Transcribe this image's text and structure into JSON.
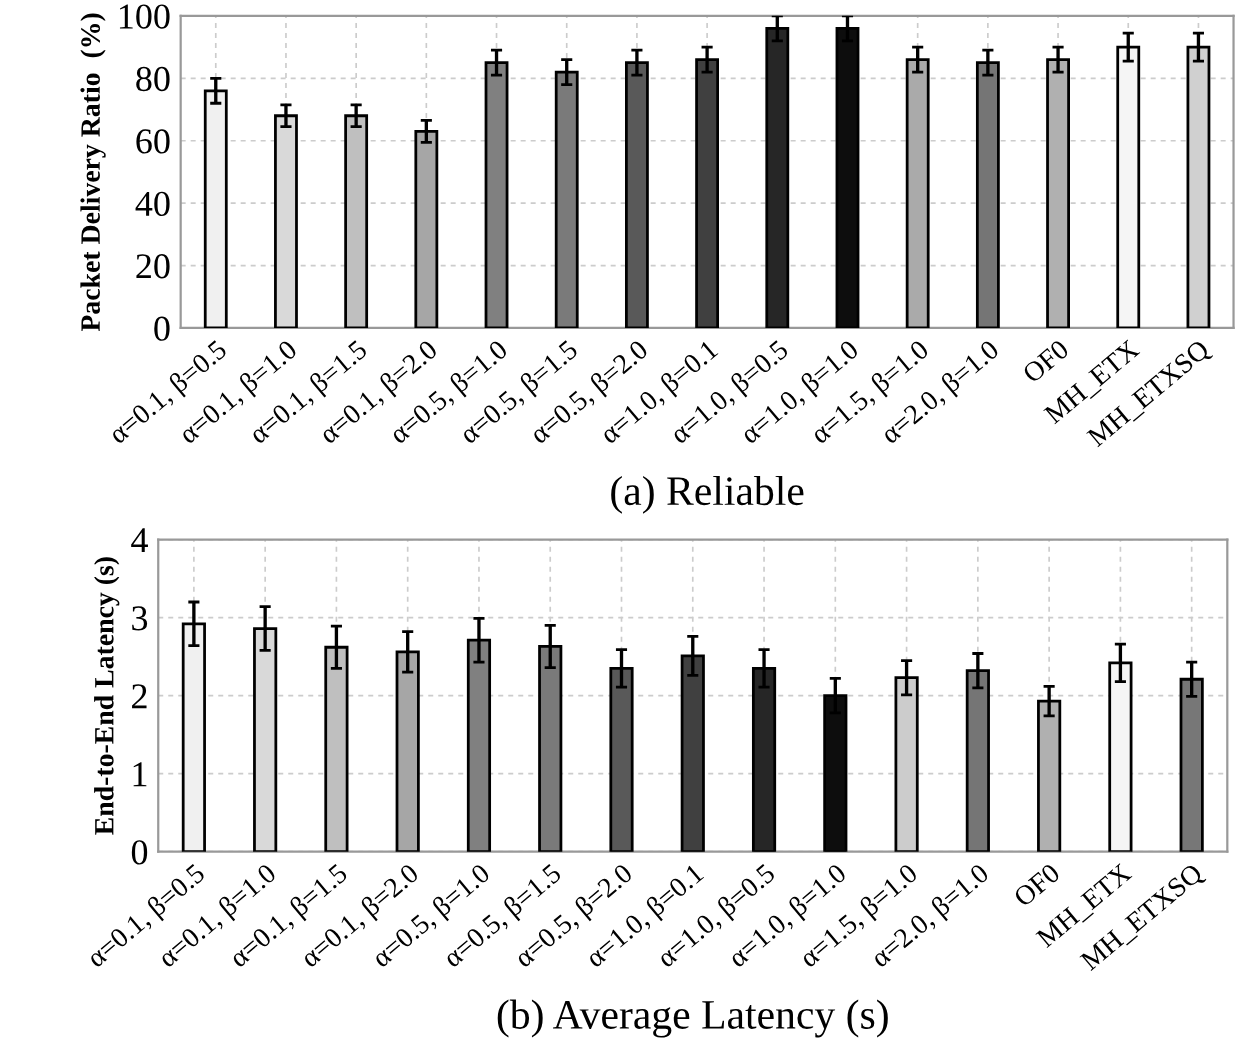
{
  "chart_data": [
    {
      "type": "bar",
      "title": "(a) Reliable",
      "ylabel": "Packet Delivery Ratio  (%)",
      "categories": [
        "α=0.1, β=0.5",
        "α=0.1, β=1.0",
        "α=0.1, β=1.5",
        "α=0.1, β=2.0",
        "α=0.5, β=1.0",
        "α=0.5, β=1.5",
        "α=0.5, β=2.0",
        "α=1.0, β=0.1",
        "α=1.0, β=0.5",
        "α=1.0, β=1.0",
        "α=1.5, β=1.0",
        "α=2.0, β=1.0",
        "OF0",
        "MH_ETX",
        "MH_ETXSQ"
      ],
      "values": [
        76,
        68,
        68,
        63,
        85,
        82,
        85,
        86,
        96,
        96,
        86,
        85,
        86,
        90,
        90
      ],
      "errors": [
        4,
        3.5,
        3.5,
        3.5,
        4,
        4,
        4,
        4,
        4,
        4,
        4,
        4,
        4,
        4.5,
        4.5
      ],
      "colors": [
        "#f0f0f0",
        "#d9d9d9",
        "#bfbfbf",
        "#a6a6a6",
        "#808080",
        "#7a7a7a",
        "#595959",
        "#404040",
        "#262626",
        "#0d0d0d",
        "#aaaaaa",
        "#757575",
        "#b0b0b0",
        "#f5f5f5",
        "#d0d0d0"
      ],
      "ylim": [
        0,
        100
      ],
      "yticks": [
        0,
        20,
        40,
        60,
        80,
        100
      ],
      "grid": true
    },
    {
      "type": "bar",
      "title": "(b) Average Latency (s)",
      "ylabel": "End-to-End Latency (s)",
      "categories": [
        "α=0.1, β=0.5",
        "α=0.1, β=1.0",
        "α=0.1, β=1.5",
        "α=0.1, β=2.0",
        "α=0.5, β=1.0",
        "α=0.5, β=1.5",
        "α=0.5, β=2.0",
        "α=1.0, β=0.1",
        "α=1.0, β=0.5",
        "α=1.0, β=1.0",
        "α=1.5, β=1.0",
        "α=2.0, β=1.0",
        "OF0",
        "MH_ETX",
        "MH_ETXSQ"
      ],
      "values": [
        2.92,
        2.86,
        2.62,
        2.56,
        2.71,
        2.63,
        2.35,
        2.51,
        2.35,
        2.0,
        2.23,
        2.32,
        1.93,
        2.42,
        2.21
      ],
      "errors": [
        0.28,
        0.28,
        0.27,
        0.26,
        0.28,
        0.27,
        0.24,
        0.25,
        0.24,
        0.22,
        0.22,
        0.22,
        0.19,
        0.24,
        0.22
      ],
      "colors": [
        "#f0f0f0",
        "#d9d9d9",
        "#bfbfbf",
        "#a6a6a6",
        "#808080",
        "#7a7a7a",
        "#595959",
        "#404040",
        "#262626",
        "#0d0d0d",
        "#cccccc",
        "#757575",
        "#b0b0b0",
        "#f5f5f5",
        "#777777"
      ],
      "ylim": [
        0,
        4
      ],
      "yticks": [
        0,
        1,
        2,
        3,
        4
      ],
      "grid": true
    }
  ]
}
